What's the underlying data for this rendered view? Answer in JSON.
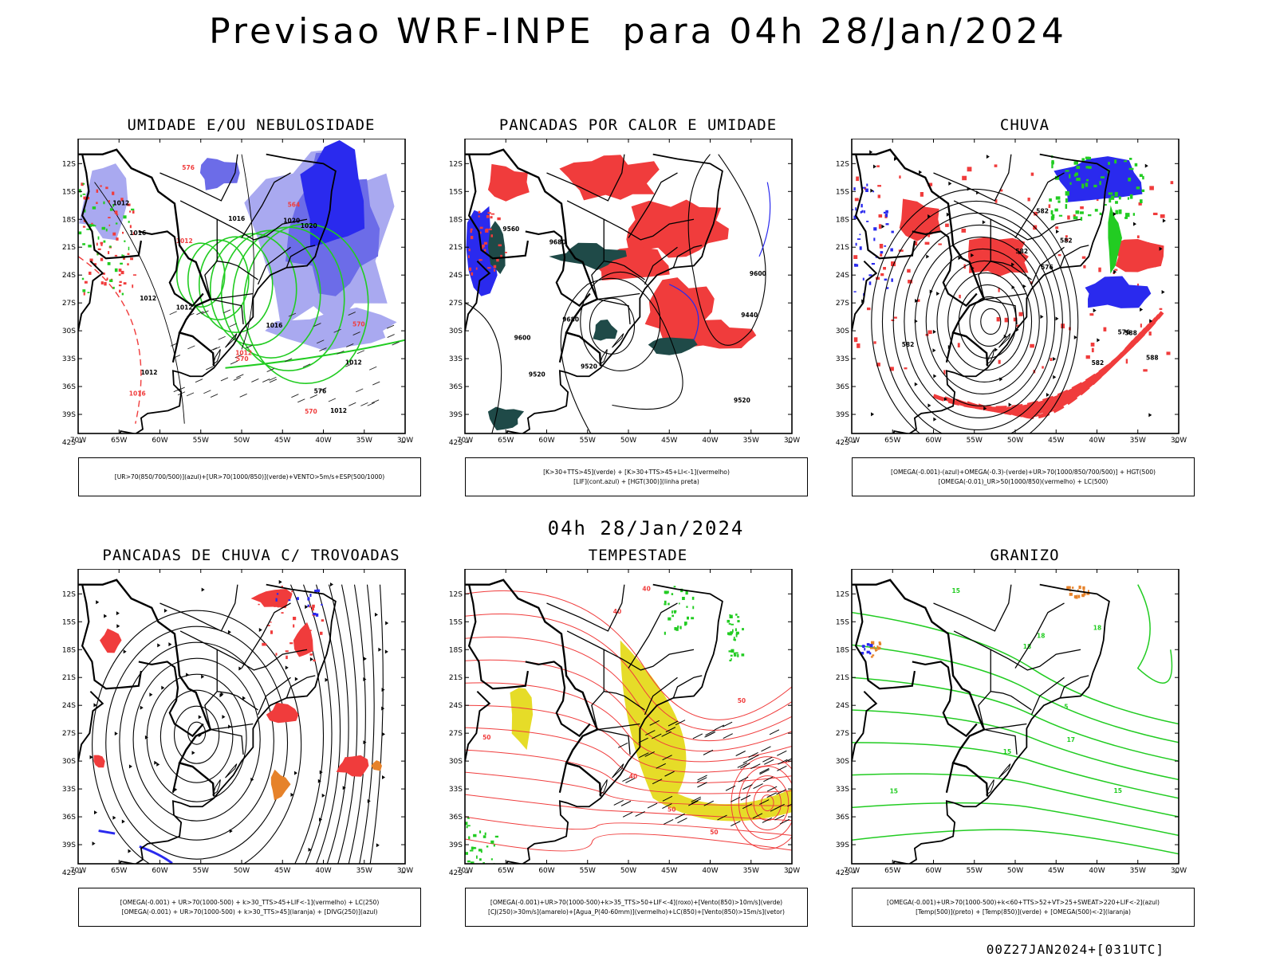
{
  "page": {
    "title": "Previsao WRF-INPE  para 04h 28/Jan/2024",
    "mid_title": "04h 28/Jan/2024",
    "footer": "00Z27JAN2024+[031UTC]"
  },
  "axes": {
    "lat_labels": [
      "12S",
      "15S",
      "18S",
      "21S",
      "24S",
      "27S",
      "30S",
      "33S",
      "36S",
      "39S",
      "42S"
    ],
    "lon_labels": [
      "70W",
      "65W",
      "60W",
      "55W",
      "50W",
      "45W",
      "40W",
      "35W",
      "30W"
    ]
  },
  "colors": {
    "red": "#f03c3c",
    "green": "#22cc22",
    "blue": "#2a2aee",
    "light_blue": "#a9a9f0",
    "mid_blue": "#6c6ce8",
    "yellow": "#e6dc28",
    "orange": "#e6822a",
    "dark_teal": "#1f4a48",
    "black": "#000000"
  },
  "panels": [
    {
      "id": "umidade",
      "title": "UMIDADE E/OU NEBULOSIDADE",
      "legend": [
        "[UR>70(850/700/500)](azul)+[UR>70(1000/850)](verde)+VENTO>5m/s+ESP(500/1000)"
      ],
      "contour_labels": [
        "1012",
        "1012",
        "1016",
        "1012",
        "1012",
        "1016",
        "1012",
        "1012",
        "1020",
        "1016",
        "1020",
        "576",
        "570",
        "570",
        "570",
        "1016",
        "1012",
        "1012",
        "576",
        "564"
      ]
    },
    {
      "id": "pancadas_calor",
      "title": "PANCADAS POR CALOR E UMIDADE",
      "legend": [
        "[K>30+TTS>45](verde) + [K>30+TTS>45+LI<-1](vermelho)",
        "[LIF](cont.azul) + [HGT(300)](linha preta)"
      ],
      "contour_labels": [
        "9680",
        "9600",
        "9560",
        "9520",
        "9440",
        "9600",
        "9520",
        "9680",
        "9520"
      ]
    },
    {
      "id": "chuva",
      "title": "CHUVA",
      "legend": [
        "[OMEGA(-0.001)-(azul)+OMEGA(-0.3)-(verde)+UR>70(1000/850/700/500)] + HGT(500)",
        "[OMEGA(-0.01)_UR>50(1000/850)(vermelho) + LC(500)"
      ],
      "contour_labels": [
        "582",
        "576",
        "576",
        "588",
        "582",
        "582",
        "582",
        "582",
        "588"
      ]
    },
    {
      "id": "pancadas_trovoadas",
      "title": "PANCADAS DE CHUVA C/ TROVOADAS",
      "legend": [
        "[OMEGA(-0.001) + UR>70(1000-500) + k>30_TTS>45+LIF<-1](vermelho) + LC(250)",
        "[OMEGA(-0.001) + UR>70(1000-500) + k>30_TTS>45](laranja) + [DIVG(250)](azul)"
      ],
      "contour_labels": []
    },
    {
      "id": "tempestade",
      "title": "TEMPESTADE",
      "legend": [
        "[OMEGA(-0.001)+UR>70(1000-500)+k>35_TTS>50+LIF<-4](roxo)+[Vento(850)>10m/s](verde)",
        "[CJ(250)>30m/s](amarelo)+[Agua_P(40-60mm)](vermelho)+LC(850)+[Vento(850)>15m/s](vetor)"
      ],
      "contour_labels": [
        "50",
        "40",
        "50",
        "40",
        "50",
        "40",
        "50"
      ]
    },
    {
      "id": "granizo",
      "title": "GRANIZO",
      "legend": [
        "[OMEGA(-0.001)+UR>70(1000-500)+k<60+TTS>52+VT>25+SWEAT>220+LIF<-2](azul)",
        "[Temp(500)](preto) + [Temp(850)](verde) + [OMEGA(500)<-2](laranja)"
      ],
      "contour_labels": [
        "15",
        "17",
        "18",
        "-5",
        "15",
        "18",
        "15",
        "15",
        "18"
      ]
    }
  ]
}
